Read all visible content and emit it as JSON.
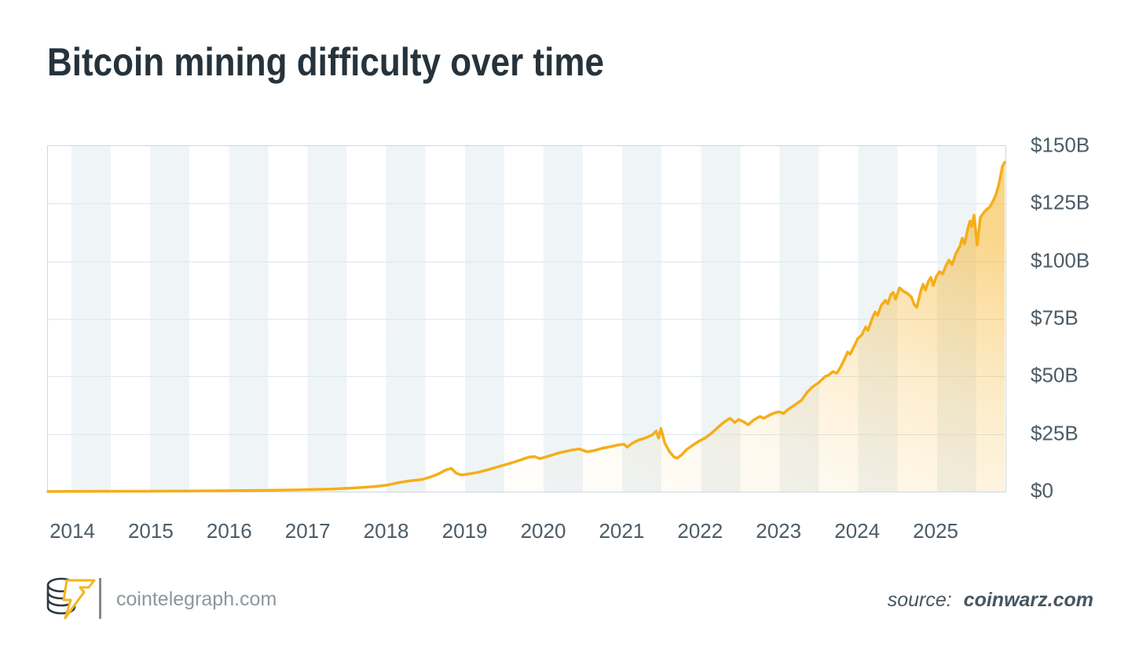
{
  "title": "Bitcoin mining difficulty over time",
  "footer": {
    "brand": "cointelegraph.com",
    "source_prefix": "source:",
    "source_name": "coinwarz.com",
    "logo": "cointelegraph-coin-stack-lightning-logo"
  },
  "colors": {
    "line": "#f5ae18",
    "fill": "#f6ae1a",
    "title_text": "#26333c",
    "axis_text": "#4c5c66",
    "grid": "#dde7ec",
    "plot_border": "#ccd8e0",
    "stripe": "#eff4f7",
    "brand_text": "#8d969d",
    "source_text": "#47565f",
    "logo_yellow": "#f6b41f",
    "logo_dark": "#2b3840"
  },
  "chart_data": {
    "type": "area",
    "title": "Bitcoin mining difficulty over time",
    "xlabel": "",
    "ylabel": "",
    "unit": "USD billions",
    "grid": true,
    "legend": false,
    "x_range": [
      2013.68,
      2025.88
    ],
    "y_range": [
      0,
      150
    ],
    "x_ticks": [
      "2014",
      "2015",
      "2016",
      "2017",
      "2018",
      "2019",
      "2020",
      "2021",
      "2022",
      "2023",
      "2024",
      "2025"
    ],
    "y_ticks": [
      {
        "label": "$150B",
        "value": 150
      },
      {
        "label": "$125B",
        "value": 125
      },
      {
        "label": "$100B",
        "value": 100
      },
      {
        "label": "$75B",
        "value": 75
      },
      {
        "label": "$50B",
        "value": 50
      },
      {
        "label": "$25B",
        "value": 25
      },
      {
        "label": "$0",
        "value": 0
      }
    ],
    "series": [
      {
        "name": "Bitcoin mining difficulty (USD billions)",
        "points": [
          [
            2013.68,
            0.05
          ],
          [
            2014.0,
            0.08
          ],
          [
            2014.5,
            0.12
          ],
          [
            2015.0,
            0.18
          ],
          [
            2015.5,
            0.26
          ],
          [
            2016.0,
            0.38
          ],
          [
            2016.5,
            0.55
          ],
          [
            2017.0,
            0.85
          ],
          [
            2017.3,
            1.1
          ],
          [
            2017.6,
            1.6
          ],
          [
            2017.85,
            2.2
          ],
          [
            2018.0,
            2.8
          ],
          [
            2018.15,
            3.9
          ],
          [
            2018.3,
            4.7
          ],
          [
            2018.45,
            5.3
          ],
          [
            2018.55,
            6.3
          ],
          [
            2018.65,
            7.6
          ],
          [
            2018.75,
            9.4
          ],
          [
            2018.82,
            10.1
          ],
          [
            2018.88,
            8.0
          ],
          [
            2018.95,
            7.2
          ],
          [
            2019.05,
            7.7
          ],
          [
            2019.15,
            8.3
          ],
          [
            2019.3,
            9.6
          ],
          [
            2019.45,
            11.1
          ],
          [
            2019.6,
            12.6
          ],
          [
            2019.7,
            13.7
          ],
          [
            2019.8,
            14.9
          ],
          [
            2019.88,
            15.2
          ],
          [
            2019.95,
            14.3
          ],
          [
            2020.05,
            15.3
          ],
          [
            2020.2,
            16.9
          ],
          [
            2020.35,
            18.0
          ],
          [
            2020.45,
            18.5
          ],
          [
            2020.55,
            17.3
          ],
          [
            2020.65,
            17.9
          ],
          [
            2020.75,
            18.9
          ],
          [
            2020.85,
            19.5
          ],
          [
            2020.95,
            20.3
          ],
          [
            2021.02,
            20.6
          ],
          [
            2021.06,
            19.3
          ],
          [
            2021.12,
            20.9
          ],
          [
            2021.2,
            22.3
          ],
          [
            2021.3,
            23.4
          ],
          [
            2021.38,
            24.6
          ],
          [
            2021.43,
            26.3
          ],
          [
            2021.46,
            23.2
          ],
          [
            2021.49,
            27.4
          ],
          [
            2021.54,
            21.0
          ],
          [
            2021.6,
            17.3
          ],
          [
            2021.66,
            14.9
          ],
          [
            2021.7,
            14.6
          ],
          [
            2021.75,
            15.8
          ],
          [
            2021.82,
            18.3
          ],
          [
            2021.9,
            20.2
          ],
          [
            2021.97,
            21.8
          ],
          [
            2022.05,
            23.2
          ],
          [
            2022.13,
            25.2
          ],
          [
            2022.22,
            28.0
          ],
          [
            2022.3,
            30.3
          ],
          [
            2022.37,
            31.8
          ],
          [
            2022.43,
            30.0
          ],
          [
            2022.48,
            31.3
          ],
          [
            2022.55,
            30.2
          ],
          [
            2022.6,
            29.0
          ],
          [
            2022.68,
            31.3
          ],
          [
            2022.75,
            32.6
          ],
          [
            2022.8,
            31.8
          ],
          [
            2022.88,
            33.3
          ],
          [
            2022.95,
            34.3
          ],
          [
            2023.0,
            34.6
          ],
          [
            2023.05,
            33.9
          ],
          [
            2023.12,
            35.9
          ],
          [
            2023.2,
            37.7
          ],
          [
            2023.28,
            39.6
          ],
          [
            2023.35,
            43.0
          ],
          [
            2023.42,
            45.4
          ],
          [
            2023.5,
            47.3
          ],
          [
            2023.58,
            49.9
          ],
          [
            2023.63,
            50.6
          ],
          [
            2023.68,
            52.1
          ],
          [
            2023.73,
            51.4
          ],
          [
            2023.78,
            54.1
          ],
          [
            2023.83,
            57.6
          ],
          [
            2023.87,
            60.6
          ],
          [
            2023.9,
            59.6
          ],
          [
            2023.95,
            63.0
          ],
          [
            2024.0,
            66.5
          ],
          [
            2024.05,
            68.0
          ],
          [
            2024.1,
            71.5
          ],
          [
            2024.13,
            70.0
          ],
          [
            2024.18,
            75.0
          ],
          [
            2024.22,
            78.0
          ],
          [
            2024.25,
            76.5
          ],
          [
            2024.3,
            81.0
          ],
          [
            2024.35,
            83.0
          ],
          [
            2024.38,
            81.5
          ],
          [
            2024.42,
            85.5
          ],
          [
            2024.45,
            86.5
          ],
          [
            2024.48,
            83.5
          ],
          [
            2024.53,
            88.5
          ],
          [
            2024.58,
            87.0
          ],
          [
            2024.63,
            86.0
          ],
          [
            2024.68,
            84.5
          ],
          [
            2024.72,
            81.0
          ],
          [
            2024.75,
            80.0
          ],
          [
            2024.8,
            87.0
          ],
          [
            2024.83,
            90.0
          ],
          [
            2024.86,
            87.5
          ],
          [
            2024.9,
            91.5
          ],
          [
            2024.93,
            93.0
          ],
          [
            2024.96,
            89.5
          ],
          [
            2025.0,
            93.5
          ],
          [
            2025.04,
            95.5
          ],
          [
            2025.08,
            94.5
          ],
          [
            2025.12,
            98.0
          ],
          [
            2025.16,
            100.5
          ],
          [
            2025.2,
            98.5
          ],
          [
            2025.25,
            103.5
          ],
          [
            2025.3,
            106.5
          ],
          [
            2025.33,
            110.0
          ],
          [
            2025.36,
            107.5
          ],
          [
            2025.4,
            114.0
          ],
          [
            2025.43,
            117.5
          ],
          [
            2025.45,
            115.0
          ],
          [
            2025.48,
            120.0
          ],
          [
            2025.52,
            107.0
          ],
          [
            2025.56,
            119.0
          ],
          [
            2025.6,
            121.0
          ],
          [
            2025.64,
            122.5
          ],
          [
            2025.68,
            123.5
          ],
          [
            2025.72,
            126.0
          ],
          [
            2025.76,
            129.0
          ],
          [
            2025.8,
            134.0
          ],
          [
            2025.84,
            141.0
          ],
          [
            2025.87,
            143.0
          ]
        ]
      }
    ]
  }
}
